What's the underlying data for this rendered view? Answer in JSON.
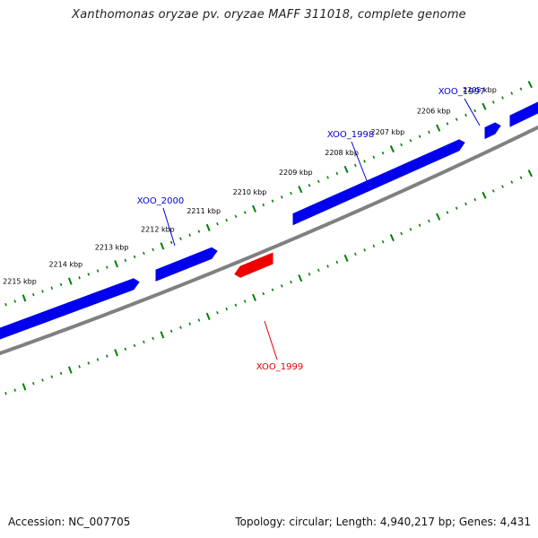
{
  "title": "Xanthomonas oryzae pv. oryzae MAFF 311018, complete genome",
  "footer": {
    "accession": "Accession: NC_007705",
    "stats": "Topology: circular; Length: 4,940,217 bp; Genes: 4,431"
  },
  "colors": {
    "forward_gene": "#0000ee",
    "reverse_gene": "#ee0000",
    "backbone": "#808080",
    "tick": "#008000",
    "forward_label": "#0000cc",
    "reverse_label": "#dd0000"
  },
  "ruler_labels": [
    {
      "label": "2205 kbp",
      "kbp": 2205
    },
    {
      "label": "2206 kbp",
      "kbp": 2206
    },
    {
      "label": "2207 kbp",
      "kbp": 2207
    },
    {
      "label": "2208 kbp",
      "kbp": 2208
    },
    {
      "label": "2209 kbp",
      "kbp": 2209
    },
    {
      "label": "2210 kbp",
      "kbp": 2210
    },
    {
      "label": "2211 kbp",
      "kbp": 2211
    },
    {
      "label": "2212 kbp",
      "kbp": 2212
    },
    {
      "label": "2213 kbp",
      "kbp": 2213
    },
    {
      "label": "2214 kbp",
      "kbp": 2214
    },
    {
      "label": "2215 kbp",
      "kbp": 2215
    }
  ],
  "genes": [
    {
      "name": "XOO_1997",
      "strand": "forward"
    },
    {
      "name": "XOO_1998",
      "strand": "forward"
    },
    {
      "name": "XOO_1999",
      "strand": "reverse"
    },
    {
      "name": "XOO_2000",
      "strand": "forward"
    }
  ]
}
